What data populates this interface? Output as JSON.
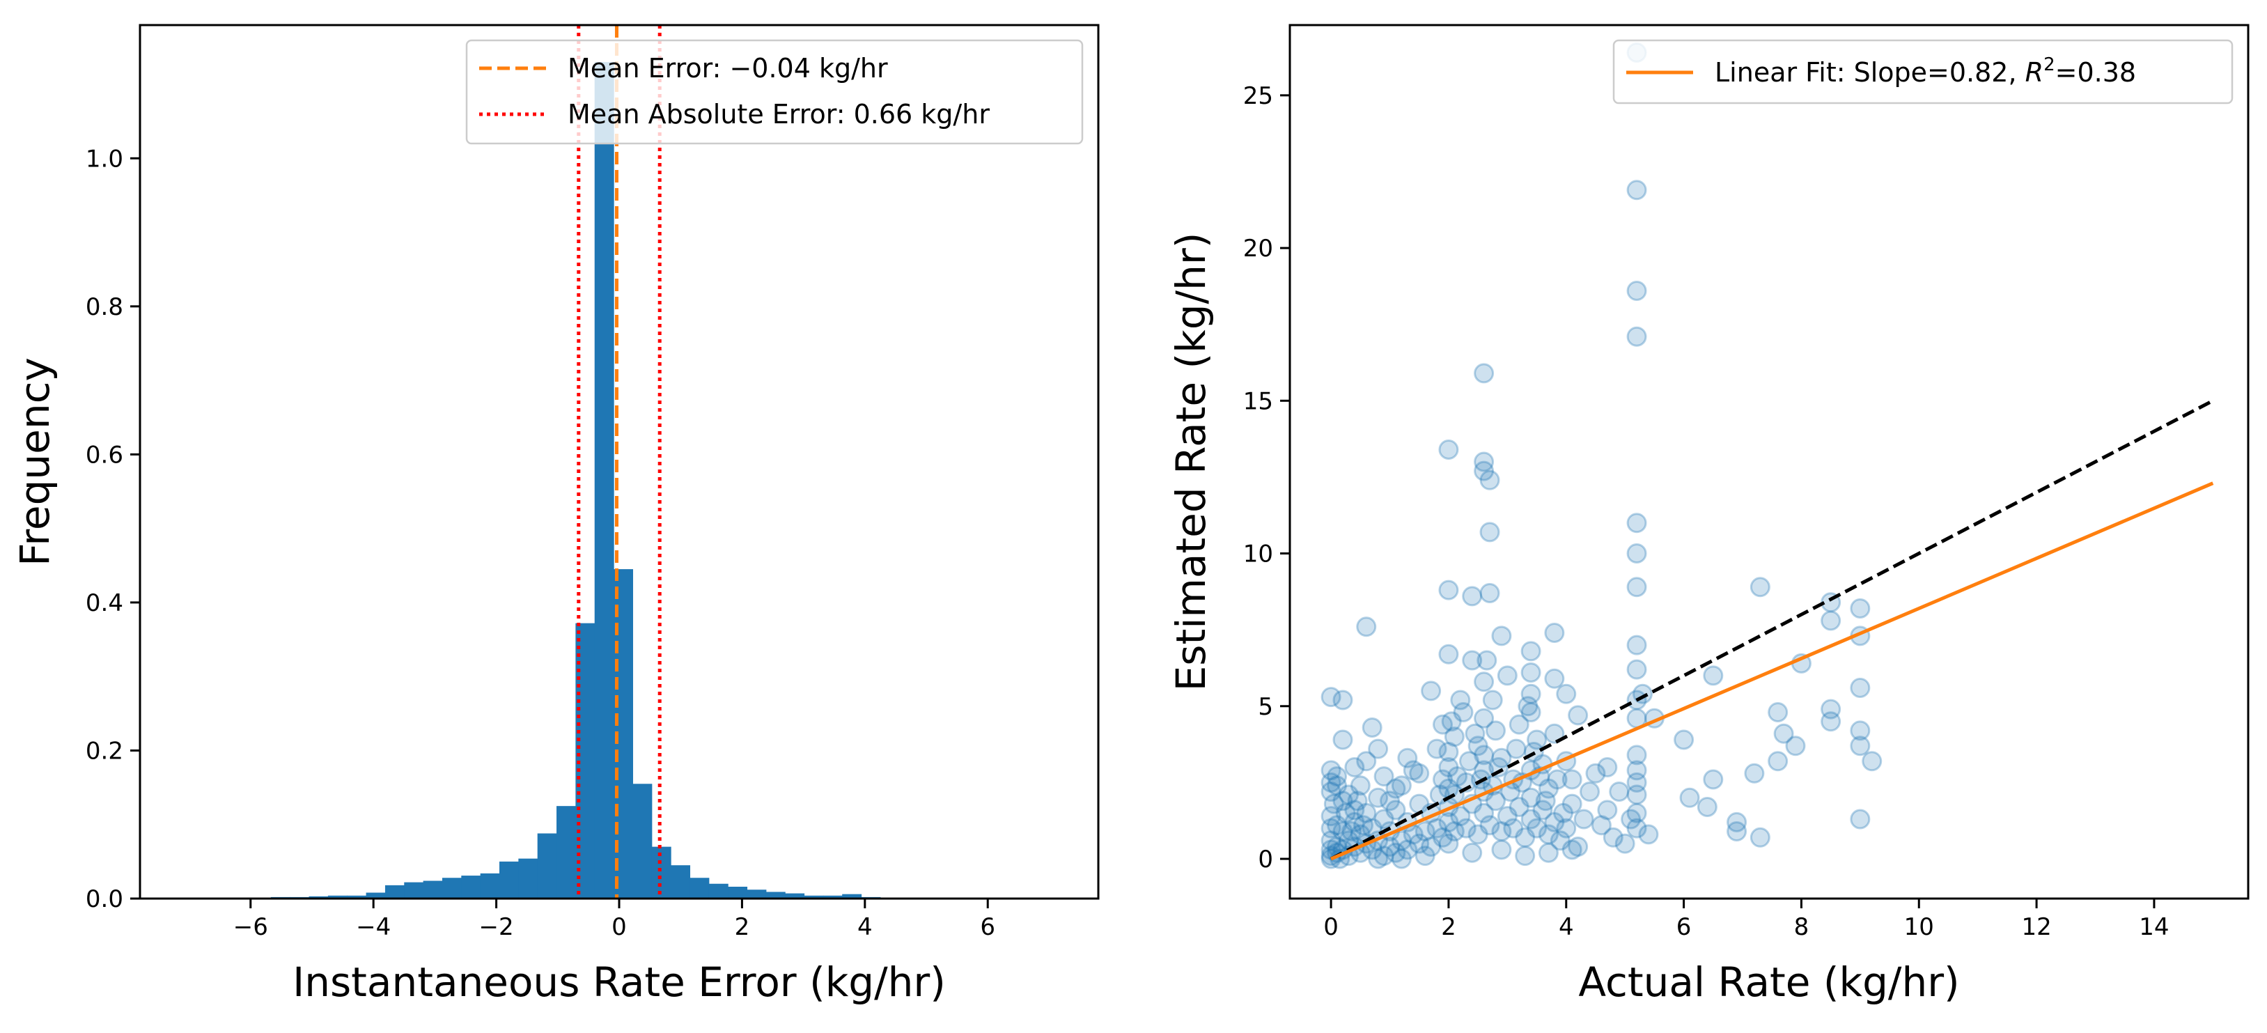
{
  "chart_data": [
    {
      "type": "bar",
      "subtype": "histogram",
      "title": "",
      "xlabel": "Instantaneous Rate Error (kg/hr)",
      "ylabel": "Frequency",
      "xlim": [
        -7.8,
        7.8
      ],
      "ylim": [
        0,
        1.18
      ],
      "xticks": [
        -6,
        -4,
        -2,
        0,
        2,
        4,
        6
      ],
      "xtick_labels": [
        "−6",
        "−4",
        "−2",
        "0",
        "2",
        "4",
        "6"
      ],
      "yticks": [
        0.0,
        0.2,
        0.4,
        0.6,
        0.8,
        1.0
      ],
      "ytick_labels": [
        "0.0",
        "0.2",
        "0.4",
        "0.6",
        "0.8",
        "1.0"
      ],
      "bar_color": "#1f77b4",
      "bin_width": 0.31,
      "bin_starts": [
        -6.6,
        -6.29,
        -5.98,
        -5.67,
        -5.36,
        -5.05,
        -4.74,
        -4.43,
        -4.12,
        -3.81,
        -3.5,
        -3.19,
        -2.88,
        -2.57,
        -2.26,
        -1.95,
        -1.64,
        -1.33,
        -1.02,
        -0.71,
        -0.4,
        -0.09,
        0.22,
        0.53,
        0.84,
        1.15,
        1.46,
        1.77,
        2.08,
        2.39,
        2.7,
        3.01,
        3.32,
        3.63,
        3.94,
        4.25,
        4.56,
        4.87,
        5.18,
        5.49,
        5.8,
        6.11,
        6.42
      ],
      "frequencies": [
        0.0,
        0.001,
        0.001,
        0.002,
        0.002,
        0.003,
        0.004,
        0.004,
        0.008,
        0.018,
        0.022,
        0.024,
        0.028,
        0.031,
        0.034,
        0.05,
        0.054,
        0.088,
        0.125,
        0.372,
        1.13,
        0.445,
        0.155,
        0.07,
        0.045,
        0.028,
        0.02,
        0.016,
        0.012,
        0.009,
        0.007,
        0.004,
        0.004,
        0.006,
        0.002,
        0.001,
        0.001,
        0.001,
        0.001,
        0.001,
        0.0,
        0.001,
        0.0
      ],
      "vlines": [
        {
          "name": "mean",
          "x": -0.04,
          "color": "#ff7f0e",
          "style": "dashed"
        },
        {
          "name": "mae-neg",
          "x": -0.66,
          "color": "#ff0000",
          "style": "dotted"
        },
        {
          "name": "mae-pos",
          "x": 0.66,
          "color": "#ff0000",
          "style": "dotted"
        }
      ],
      "legend": {
        "position": "top-right",
        "entries": [
          {
            "label": "Mean Error: −0.04 kg/hr",
            "color": "#ff7f0e",
            "style": "dashed"
          },
          {
            "label": "Mean Absolute Error: 0.66 kg/hr",
            "color": "#ff0000",
            "style": "dotted"
          }
        ]
      }
    },
    {
      "type": "scatter",
      "title": "",
      "xlabel": "Actual Rate (kg/hr)",
      "ylabel": "Estimated Rate (kg/hr)",
      "xlim": [
        -0.7,
        15.6
      ],
      "ylim": [
        -1.3,
        27.3
      ],
      "xticks": [
        0,
        2,
        4,
        6,
        8,
        10,
        12,
        14
      ],
      "xtick_labels": [
        "0",
        "2",
        "4",
        "6",
        "8",
        "10",
        "12",
        "14"
      ],
      "yticks": [
        0,
        5,
        10,
        15,
        20,
        25
      ],
      "ytick_labels": [
        "0",
        "5",
        "10",
        "15",
        "20",
        "25"
      ],
      "point_color": "#1f77b4",
      "point_alpha": 0.22,
      "points": [
        [
          5.2,
          26.4
        ],
        [
          5.2,
          21.9
        ],
        [
          5.2,
          18.6
        ],
        [
          5.2,
          17.1
        ],
        [
          2.6,
          15.9
        ],
        [
          2.0,
          13.4
        ],
        [
          2.6,
          12.7
        ],
        [
          2.7,
          12.4
        ],
        [
          2.6,
          13.0
        ],
        [
          5.2,
          11.0
        ],
        [
          5.2,
          10.0
        ],
        [
          2.7,
          10.7
        ],
        [
          5.2,
          8.9
        ],
        [
          2.4,
          8.6
        ],
        [
          2.7,
          8.7
        ],
        [
          2.0,
          8.8
        ],
        [
          0.6,
          7.6
        ],
        [
          2.9,
          7.3
        ],
        [
          3.8,
          7.4
        ],
        [
          3.4,
          6.8
        ],
        [
          7.3,
          8.9
        ],
        [
          8.5,
          8.4
        ],
        [
          9.0,
          8.2
        ],
        [
          9.0,
          7.3
        ],
        [
          8.5,
          7.8
        ],
        [
          8.0,
          6.4
        ],
        [
          6.5,
          6.0
        ],
        [
          5.2,
          6.2
        ],
        [
          5.2,
          7.0
        ],
        [
          5.2,
          5.2
        ],
        [
          5.2,
          4.6
        ],
        [
          5.3,
          5.4
        ],
        [
          5.5,
          4.6
        ],
        [
          6.0,
          3.9
        ],
        [
          5.2,
          3.4
        ],
        [
          5.2,
          2.9
        ],
        [
          5.2,
          2.5
        ],
        [
          5.2,
          2.1
        ],
        [
          5.2,
          1.5
        ],
        [
          5.2,
          1.0
        ],
        [
          5.4,
          0.8
        ],
        [
          5.0,
          0.5
        ],
        [
          6.1,
          2.0
        ],
        [
          6.4,
          1.7
        ],
        [
          6.5,
          2.6
        ],
        [
          6.9,
          1.2
        ],
        [
          6.9,
          0.9
        ],
        [
          7.3,
          0.7
        ],
        [
          7.2,
          2.8
        ],
        [
          7.6,
          3.2
        ],
        [
          7.6,
          4.8
        ],
        [
          7.7,
          4.1
        ],
        [
          7.9,
          3.7
        ],
        [
          8.5,
          4.5
        ],
        [
          8.5,
          4.9
        ],
        [
          9.0,
          5.6
        ],
        [
          9.0,
          4.2
        ],
        [
          9.0,
          3.7
        ],
        [
          9.2,
          3.2
        ],
        [
          9.0,
          1.3
        ],
        [
          0.0,
          5.3
        ],
        [
          0.2,
          5.2
        ],
        [
          4.0,
          5.4
        ],
        [
          4.2,
          4.7
        ],
        [
          3.8,
          5.9
        ],
        [
          3.4,
          5.4
        ],
        [
          3.0,
          6.0
        ],
        [
          2.4,
          6.5
        ],
        [
          2.0,
          6.7
        ],
        [
          1.7,
          5.5
        ],
        [
          1.9,
          4.4
        ],
        [
          2.2,
          5.2
        ],
        [
          0.7,
          4.3
        ],
        [
          0.8,
          3.6
        ],
        [
          1.3,
          3.3
        ],
        [
          0.4,
          3.0
        ],
        [
          0.1,
          2.7
        ],
        [
          0.0,
          2.2
        ],
        [
          0.2,
          1.9
        ],
        [
          0.5,
          2.4
        ],
        [
          0.9,
          2.7
        ],
        [
          1.1,
          2.3
        ],
        [
          1.4,
          2.9
        ],
        [
          1.8,
          3.6
        ],
        [
          2.1,
          4.0
        ],
        [
          2.5,
          3.7
        ],
        [
          2.8,
          4.2
        ],
        [
          3.2,
          4.4
        ],
        [
          3.5,
          3.9
        ],
        [
          3.8,
          4.1
        ],
        [
          4.0,
          3.2
        ],
        [
          4.1,
          2.6
        ],
        [
          4.4,
          2.2
        ],
        [
          4.7,
          1.6
        ],
        [
          4.5,
          2.8
        ],
        [
          3.7,
          2.3
        ],
        [
          3.6,
          3.1
        ],
        [
          3.4,
          2.0
        ],
        [
          3.1,
          2.6
        ],
        [
          2.9,
          3.3
        ],
        [
          2.6,
          2.9
        ],
        [
          2.3,
          2.5
        ],
        [
          2.1,
          2.1
        ],
        [
          2.0,
          1.7
        ],
        [
          1.9,
          2.6
        ],
        [
          1.7,
          1.5
        ],
        [
          1.5,
          1.8
        ],
        [
          1.3,
          1.2
        ],
        [
          1.1,
          1.6
        ],
        [
          1.0,
          0.9
        ],
        [
          0.9,
          1.3
        ],
        [
          0.8,
          2.0
        ],
        [
          0.7,
          1.0
        ],
        [
          0.6,
          1.5
        ],
        [
          0.5,
          0.8
        ],
        [
          0.4,
          1.2
        ],
        [
          0.3,
          0.6
        ],
        [
          0.2,
          0.9
        ],
        [
          0.1,
          0.4
        ],
        [
          0.0,
          0.3
        ],
        [
          0.0,
          0.1
        ],
        [
          0.0,
          0.0
        ],
        [
          0.0,
          0.6
        ],
        [
          0.0,
          1.0
        ],
        [
          0.0,
          1.4
        ],
        [
          0.05,
          1.8
        ],
        [
          0.1,
          0.2
        ],
        [
          0.15,
          0.0
        ],
        [
          0.2,
          0.3
        ],
        [
          0.3,
          0.1
        ],
        [
          0.4,
          0.4
        ],
        [
          0.5,
          0.2
        ],
        [
          0.6,
          0.5
        ],
        [
          0.7,
          0.3
        ],
        [
          0.8,
          0.6
        ],
        [
          0.9,
          0.1
        ],
        [
          1.0,
          0.4
        ],
        [
          1.1,
          0.2
        ],
        [
          1.2,
          0.6
        ],
        [
          1.3,
          0.3
        ],
        [
          1.4,
          0.8
        ],
        [
          1.5,
          0.5
        ],
        [
          1.6,
          0.9
        ],
        [
          1.7,
          0.4
        ],
        [
          1.8,
          1.0
        ],
        [
          1.9,
          0.7
        ],
        [
          2.0,
          1.2
        ],
        [
          2.0,
          0.5
        ],
        [
          2.0,
          2.3
        ],
        [
          2.0,
          3.0
        ],
        [
          2.0,
          3.5
        ],
        [
          2.1,
          0.9
        ],
        [
          2.2,
          1.4
        ],
        [
          2.3,
          1.0
        ],
        [
          2.4,
          1.8
        ],
        [
          2.5,
          0.8
        ],
        [
          2.6,
          1.5
        ],
        [
          2.6,
          2.2
        ],
        [
          2.6,
          3.4
        ],
        [
          2.6,
          4.6
        ],
        [
          2.6,
          5.8
        ],
        [
          2.7,
          1.1
        ],
        [
          2.8,
          1.9
        ],
        [
          2.9,
          0.9
        ],
        [
          3.0,
          1.4
        ],
        [
          3.1,
          1.0
        ],
        [
          3.2,
          1.7
        ],
        [
          3.3,
          0.7
        ],
        [
          3.4,
          1.3
        ],
        [
          3.4,
          2.9
        ],
        [
          3.4,
          4.8
        ],
        [
          3.4,
          6.1
        ],
        [
          3.5,
          1.0
        ],
        [
          3.6,
          1.6
        ],
        [
          3.7,
          0.8
        ],
        [
          3.8,
          1.2
        ],
        [
          3.9,
          0.6
        ],
        [
          4.0,
          1.0
        ],
        [
          4.1,
          1.8
        ],
        [
          4.2,
          0.4
        ],
        [
          4.3,
          1.3
        ],
        [
          4.6,
          1.1
        ],
        [
          4.8,
          0.7
        ],
        [
          5.1,
          1.3
        ],
        [
          4.9,
          2.2
        ],
        [
          4.7,
          3.0
        ],
        [
          1.0,
          1.9
        ],
        [
          1.2,
          2.4
        ],
        [
          1.5,
          2.8
        ],
        [
          0.3,
          2.1
        ],
        [
          0.6,
          3.2
        ],
        [
          0.2,
          3.9
        ],
        [
          0.4,
          1.6
        ],
        [
          0.1,
          1.1
        ],
        [
          0.8,
          0.0
        ],
        [
          1.2,
          0.0
        ],
        [
          1.6,
          0.1
        ],
        [
          2.4,
          0.2
        ],
        [
          2.9,
          0.3
        ],
        [
          3.3,
          0.1
        ],
        [
          3.7,
          0.2
        ],
        [
          4.1,
          0.3
        ],
        [
          0.0,
          2.5
        ],
        [
          0.0,
          2.9
        ],
        [
          0.1,
          2.4
        ],
        [
          0.25,
          1.5
        ],
        [
          0.35,
          0.9
        ],
        [
          0.45,
          1.9
        ],
        [
          0.55,
          1.1
        ],
        [
          1.85,
          2.1
        ],
        [
          2.15,
          2.7
        ],
        [
          2.35,
          3.2
        ],
        [
          2.45,
          4.1
        ],
        [
          2.55,
          2.6
        ],
        [
          2.75,
          2.4
        ],
        [
          2.85,
          3.0
        ],
        [
          3.05,
          2.2
        ],
        [
          3.15,
          3.6
        ],
        [
          3.25,
          2.5
        ],
        [
          3.45,
          3.5
        ],
        [
          3.55,
          2.7
        ],
        [
          3.65,
          1.9
        ],
        [
          3.85,
          2.6
        ],
        [
          3.95,
          1.5
        ],
        [
          2.05,
          4.5
        ],
        [
          2.25,
          4.8
        ],
        [
          2.65,
          6.5
        ],
        [
          2.75,
          5.2
        ],
        [
          3.35,
          5.0
        ]
      ],
      "lines": [
        {
          "name": "identity-line",
          "x": [
            0,
            15
          ],
          "y": [
            0,
            15
          ],
          "color": "#000000",
          "style": "dashed"
        },
        {
          "name": "linear-fit-line",
          "x": [
            0,
            15
          ],
          "y": [
            0,
            12.3
          ],
          "color": "#ff7f0e",
          "style": "solid"
        }
      ],
      "legend": {
        "position": "top-right",
        "entries": [
          {
            "label": "Linear Fit: Slope=0.82, ",
            "math": "R",
            "sup": "2",
            "suffix": "=0.38",
            "color": "#ff7f0e",
            "style": "solid"
          }
        ]
      }
    }
  ]
}
